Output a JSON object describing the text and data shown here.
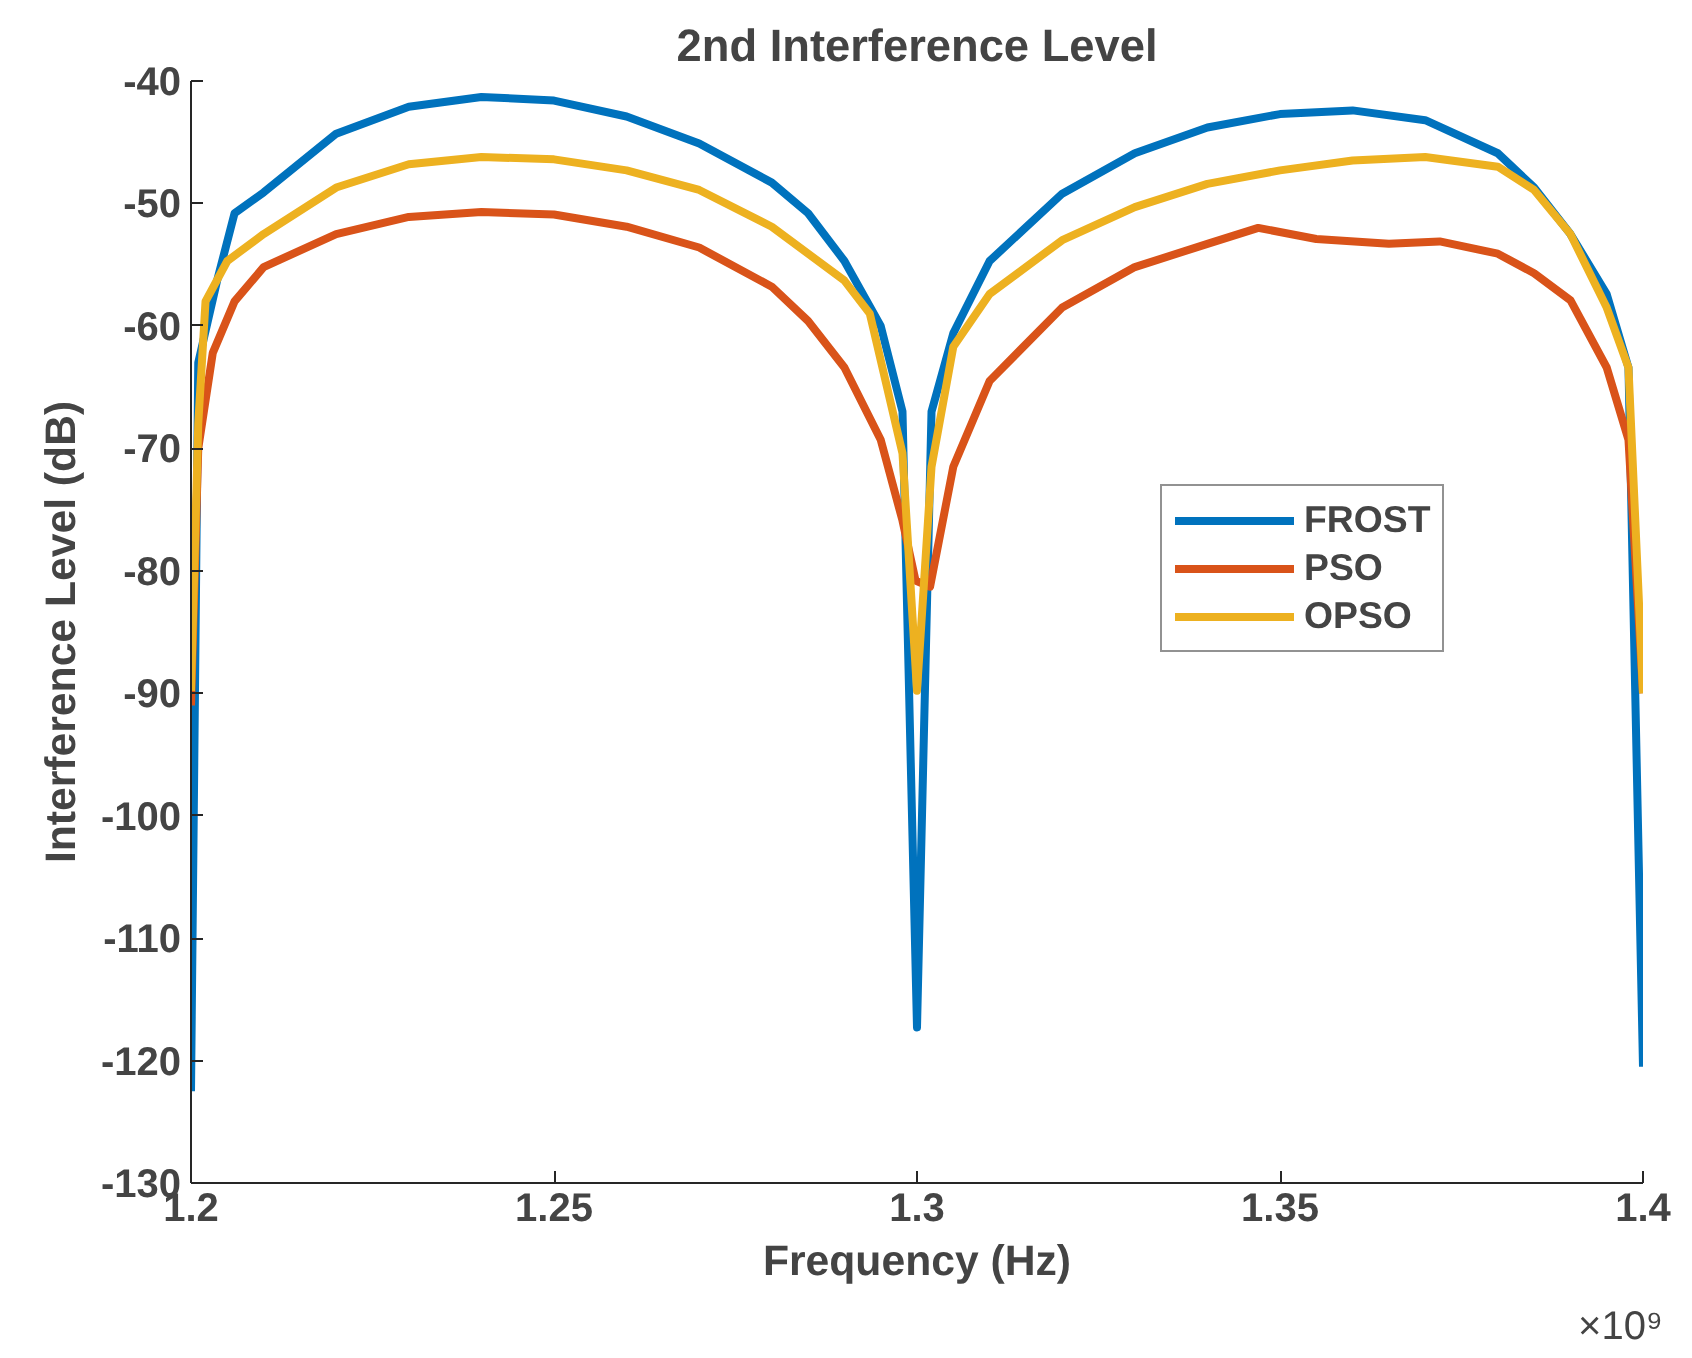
{
  "chart_data": {
    "type": "line",
    "title": "2nd Interference Level",
    "xlabel": "Frequency (Hz)",
    "ylabel": "Interference Level (dB)",
    "annotations": [
      "×10⁹"
    ],
    "xlim": [
      1.2,
      1.4
    ],
    "ylim": [
      -130,
      -40
    ],
    "xticks": [
      1.2,
      1.25,
      1.3,
      1.35,
      1.4
    ],
    "yticks": [
      -130,
      -120,
      -110,
      -100,
      -90,
      -80,
      -70,
      -60,
      -50,
      -40
    ],
    "grid": false,
    "legend": "right",
    "line_style": "solid",
    "series": [
      {
        "name": "FROST",
        "color": "#0072bd",
        "x": [
          1.2,
          1.201,
          1.2036,
          1.206,
          1.21,
          1.22,
          1.23,
          1.24,
          1.25,
          1.26,
          1.27,
          1.28,
          1.285,
          1.29,
          1.295,
          1.298,
          1.3,
          1.302,
          1.305,
          1.31,
          1.32,
          1.33,
          1.34,
          1.35,
          1.36,
          1.37,
          1.38,
          1.385,
          1.39,
          1.395,
          1.398,
          1.4
        ],
        "values": [
          -122.5,
          -63,
          -56.3,
          -50.8,
          -49.1,
          -44.3,
          -42.1,
          -41.3,
          -41.6,
          -42.9,
          -45.1,
          -48.3,
          -50.8,
          -54.7,
          -60,
          -67,
          -117.3,
          -67,
          -60.6,
          -54.7,
          -49.2,
          -45.9,
          -43.8,
          -42.7,
          -42.4,
          -43.2,
          -45.9,
          -48.7,
          -52.5,
          -57.4,
          -63.4,
          -120.5
        ]
      },
      {
        "name": "PSO",
        "color": "#d95319",
        "x": [
          1.2,
          1.201,
          1.203,
          1.206,
          1.21,
          1.22,
          1.23,
          1.24,
          1.25,
          1.26,
          1.27,
          1.28,
          1.285,
          1.29,
          1.295,
          1.298,
          1.2998,
          1.3018,
          1.305,
          1.31,
          1.32,
          1.33,
          1.34,
          1.347,
          1.355,
          1.365,
          1.372,
          1.38,
          1.385,
          1.39,
          1.395,
          1.398,
          1.4
        ],
        "values": [
          -91,
          -70,
          -62.2,
          -58,
          -55.2,
          -52.5,
          -51.1,
          -50.7,
          -50.9,
          -51.9,
          -53.6,
          -56.8,
          -59.6,
          -63.4,
          -69.3,
          -75.9,
          -80.8,
          -81.3,
          -71.5,
          -64.5,
          -58.5,
          -55.2,
          -53.3,
          -52,
          -52.9,
          -53.3,
          -53.1,
          -54.1,
          -55.7,
          -57.9,
          -63.4,
          -69.3,
          -90
        ]
      },
      {
        "name": "OPSO",
        "color": "#edb120",
        "x": [
          1.2,
          1.201,
          1.202,
          1.205,
          1.21,
          1.22,
          1.23,
          1.24,
          1.25,
          1.26,
          1.27,
          1.28,
          1.29,
          1.2935,
          1.298,
          1.3,
          1.302,
          1.305,
          1.31,
          1.32,
          1.33,
          1.34,
          1.35,
          1.36,
          1.37,
          1.38,
          1.385,
          1.39,
          1.395,
          1.398,
          1.4
        ],
        "values": [
          -89.8,
          -68,
          -58,
          -54.7,
          -52.5,
          -48.7,
          -46.8,
          -46.2,
          -46.4,
          -47.3,
          -48.9,
          -51.9,
          -56.3,
          -59,
          -70.4,
          -89.8,
          -71.5,
          -61.7,
          -57.4,
          -53,
          -50.3,
          -48.4,
          -47.3,
          -46.5,
          -46.2,
          -47,
          -48.9,
          -52.5,
          -58.5,
          -63.4,
          -90
        ]
      }
    ]
  }
}
